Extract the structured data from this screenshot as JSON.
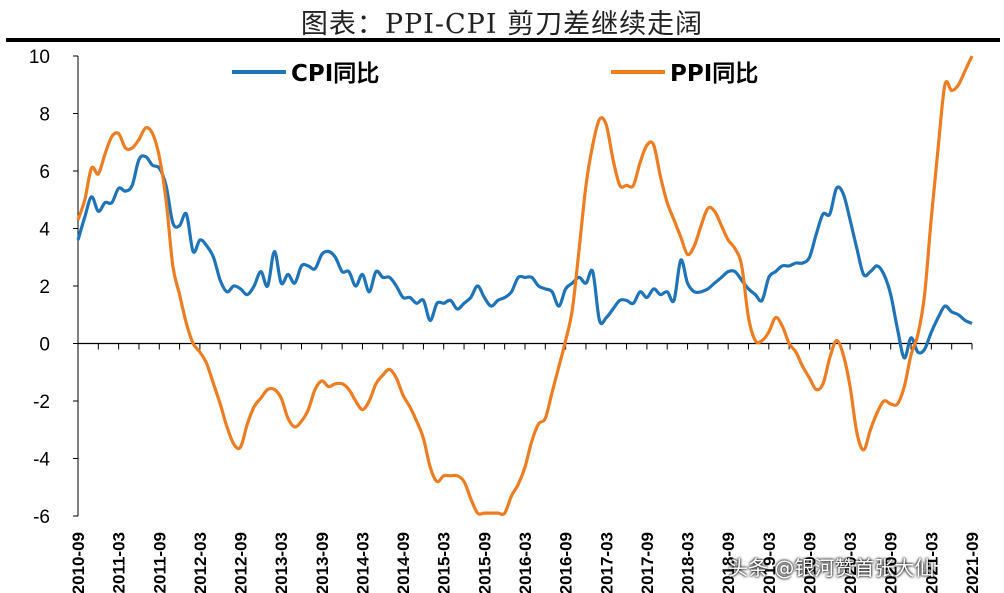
{
  "title": "图表：PPI-CPI 剪刀差继续走阔",
  "watermark": "头条 @银河赞首张大仙",
  "chart_data": {
    "type": "line",
    "title": "图表：PPI-CPI 剪刀差继续走阔",
    "xlabel": "",
    "ylabel": "",
    "ylim": [
      -6,
      10
    ],
    "yticks": [
      -6,
      -4,
      -2,
      0,
      2,
      4,
      6,
      8,
      10
    ],
    "x_tick_labels": [
      "2010-09",
      "2011-03",
      "2011-09",
      "2012-03",
      "2012-09",
      "2013-03",
      "2013-09",
      "2014-03",
      "2014-09",
      "2015-03",
      "2015-09",
      "2016-03",
      "2016-09",
      "2017-03",
      "2017-09",
      "2018-03",
      "2018-09",
      "2019-03",
      "2019-09",
      "2020-03",
      "2020-09",
      "2021-03",
      "2021-09"
    ],
    "legend_position": "top",
    "series": [
      {
        "name": "CPI同比",
        "color": "#1f73b7",
        "x": [
          "2010-09",
          "2010-10",
          "2010-11",
          "2010-12",
          "2011-01",
          "2011-02",
          "2011-03",
          "2011-04",
          "2011-05",
          "2011-06",
          "2011-07",
          "2011-08",
          "2011-09",
          "2011-10",
          "2011-11",
          "2011-12",
          "2012-01",
          "2012-02",
          "2012-03",
          "2012-04",
          "2012-05",
          "2012-06",
          "2012-07",
          "2012-08",
          "2012-09",
          "2012-10",
          "2012-11",
          "2012-12",
          "2013-01",
          "2013-02",
          "2013-03",
          "2013-04",
          "2013-05",
          "2013-06",
          "2013-07",
          "2013-08",
          "2013-09",
          "2013-10",
          "2013-11",
          "2013-12",
          "2014-01",
          "2014-02",
          "2014-03",
          "2014-04",
          "2014-05",
          "2014-06",
          "2014-07",
          "2014-08",
          "2014-09",
          "2014-10",
          "2014-11",
          "2014-12",
          "2015-01",
          "2015-02",
          "2015-03",
          "2015-04",
          "2015-05",
          "2015-06",
          "2015-07",
          "2015-08",
          "2015-09",
          "2015-10",
          "2015-11",
          "2015-12",
          "2016-01",
          "2016-02",
          "2016-03",
          "2016-04",
          "2016-05",
          "2016-06",
          "2016-07",
          "2016-08",
          "2016-09",
          "2016-10",
          "2016-11",
          "2016-12",
          "2017-01",
          "2017-02",
          "2017-03",
          "2017-04",
          "2017-05",
          "2017-06",
          "2017-07",
          "2017-08",
          "2017-09",
          "2017-10",
          "2017-11",
          "2017-12",
          "2018-01",
          "2018-02",
          "2018-03",
          "2018-04",
          "2018-05",
          "2018-06",
          "2018-07",
          "2018-08",
          "2018-09",
          "2018-10",
          "2018-11",
          "2018-12",
          "2019-01",
          "2019-02",
          "2019-03",
          "2019-04",
          "2019-05",
          "2019-06",
          "2019-07",
          "2019-08",
          "2019-09",
          "2019-10",
          "2019-11",
          "2019-12",
          "2020-01",
          "2020-02",
          "2020-03",
          "2020-04",
          "2020-05",
          "2020-06",
          "2020-07",
          "2020-08",
          "2020-09",
          "2020-10",
          "2020-11",
          "2020-12",
          "2021-01",
          "2021-02",
          "2021-03",
          "2021-04",
          "2021-05",
          "2021-06",
          "2021-07",
          "2021-08",
          "2021-09"
        ],
        "values": [
          3.6,
          4.4,
          5.1,
          4.6,
          4.9,
          4.9,
          5.4,
          5.3,
          5.5,
          6.4,
          6.5,
          6.2,
          6.1,
          5.5,
          4.2,
          4.1,
          4.5,
          3.2,
          3.6,
          3.4,
          3.0,
          2.2,
          1.8,
          2.0,
          1.9,
          1.7,
          2.0,
          2.5,
          2.0,
          3.2,
          2.1,
          2.4,
          2.1,
          2.7,
          2.7,
          2.6,
          3.1,
          3.2,
          3.0,
          2.5,
          2.5,
          2.0,
          2.4,
          1.8,
          2.5,
          2.3,
          2.3,
          2.0,
          1.6,
          1.6,
          1.4,
          1.5,
          0.8,
          1.4,
          1.4,
          1.5,
          1.2,
          1.4,
          1.6,
          2.0,
          1.6,
          1.3,
          1.5,
          1.6,
          1.8,
          2.3,
          2.3,
          2.3,
          2.0,
          1.9,
          1.8,
          1.3,
          1.9,
          2.1,
          2.3,
          2.1,
          2.5,
          0.8,
          0.9,
          1.2,
          1.5,
          1.5,
          1.4,
          1.8,
          1.6,
          1.9,
          1.7,
          1.8,
          1.5,
          2.9,
          2.1,
          1.8,
          1.8,
          1.9,
          2.1,
          2.3,
          2.5,
          2.5,
          2.2,
          1.9,
          1.7,
          1.5,
          2.3,
          2.5,
          2.7,
          2.7,
          2.8,
          2.8,
          3.0,
          3.8,
          4.5,
          4.5,
          5.4,
          5.2,
          4.3,
          3.3,
          2.4,
          2.5,
          2.7,
          2.4,
          1.7,
          0.5,
          -0.5,
          0.2,
          -0.3,
          -0.2,
          0.4,
          0.9,
          1.3,
          1.1,
          1.0,
          0.8,
          0.7
        ]
      },
      {
        "name": "PPI同比",
        "color": "#ed7d22",
        "x": [
          "2010-09",
          "2010-10",
          "2010-11",
          "2010-12",
          "2011-01",
          "2011-02",
          "2011-03",
          "2011-04",
          "2011-05",
          "2011-06",
          "2011-07",
          "2011-08",
          "2011-09",
          "2011-10",
          "2011-11",
          "2011-12",
          "2012-01",
          "2012-02",
          "2012-03",
          "2012-04",
          "2012-05",
          "2012-06",
          "2012-07",
          "2012-08",
          "2012-09",
          "2012-10",
          "2012-11",
          "2012-12",
          "2013-01",
          "2013-02",
          "2013-03",
          "2013-04",
          "2013-05",
          "2013-06",
          "2013-07",
          "2013-08",
          "2013-09",
          "2013-10",
          "2013-11",
          "2013-12",
          "2014-01",
          "2014-02",
          "2014-03",
          "2014-04",
          "2014-05",
          "2014-06",
          "2014-07",
          "2014-08",
          "2014-09",
          "2014-10",
          "2014-11",
          "2014-12",
          "2015-01",
          "2015-02",
          "2015-03",
          "2015-04",
          "2015-05",
          "2015-06",
          "2015-07",
          "2015-08",
          "2015-09",
          "2015-10",
          "2015-11",
          "2015-12",
          "2016-01",
          "2016-02",
          "2016-03",
          "2016-04",
          "2016-05",
          "2016-06",
          "2016-07",
          "2016-08",
          "2016-09",
          "2016-10",
          "2016-11",
          "2016-12",
          "2017-01",
          "2017-02",
          "2017-03",
          "2017-04",
          "2017-05",
          "2017-06",
          "2017-07",
          "2017-08",
          "2017-09",
          "2017-10",
          "2017-11",
          "2017-12",
          "2018-01",
          "2018-02",
          "2018-03",
          "2018-04",
          "2018-05",
          "2018-06",
          "2018-07",
          "2018-08",
          "2018-09",
          "2018-10",
          "2018-11",
          "2018-12",
          "2019-01",
          "2019-02",
          "2019-03",
          "2019-04",
          "2019-05",
          "2019-06",
          "2019-07",
          "2019-08",
          "2019-09",
          "2019-10",
          "2019-11",
          "2019-12",
          "2020-01",
          "2020-02",
          "2020-03",
          "2020-04",
          "2020-05",
          "2020-06",
          "2020-07",
          "2020-08",
          "2020-09",
          "2020-10",
          "2020-11",
          "2020-12",
          "2021-01",
          "2021-02",
          "2021-03",
          "2021-04",
          "2021-05",
          "2021-06",
          "2021-07",
          "2021-08",
          "2021-09"
        ],
        "values": [
          4.3,
          5.0,
          6.1,
          5.9,
          6.6,
          7.2,
          7.3,
          6.8,
          6.8,
          7.1,
          7.5,
          7.3,
          6.5,
          5.0,
          2.7,
          1.7,
          0.7,
          0.0,
          -0.3,
          -0.7,
          -1.4,
          -2.1,
          -2.9,
          -3.5,
          -3.6,
          -2.8,
          -2.2,
          -1.9,
          -1.6,
          -1.6,
          -1.9,
          -2.6,
          -2.9,
          -2.7,
          -2.3,
          -1.6,
          -1.3,
          -1.5,
          -1.4,
          -1.4,
          -1.6,
          -2.0,
          -2.3,
          -2.0,
          -1.4,
          -1.1,
          -0.9,
          -1.2,
          -1.8,
          -2.2,
          -2.7,
          -3.3,
          -4.3,
          -4.8,
          -4.6,
          -4.6,
          -4.6,
          -4.8,
          -5.4,
          -5.9,
          -5.9,
          -5.9,
          -5.9,
          -5.9,
          -5.3,
          -4.9,
          -4.3,
          -3.4,
          -2.8,
          -2.6,
          -1.7,
          -0.8,
          0.1,
          1.2,
          3.3,
          5.5,
          6.9,
          7.8,
          7.6,
          6.4,
          5.5,
          5.5,
          5.5,
          6.3,
          6.9,
          6.9,
          5.8,
          4.9,
          4.3,
          3.7,
          3.1,
          3.4,
          4.1,
          4.7,
          4.6,
          4.1,
          3.6,
          3.3,
          2.7,
          0.9,
          0.1,
          0.1,
          0.4,
          0.9,
          0.6,
          0.0,
          -0.3,
          -0.8,
          -1.2,
          -1.6,
          -1.4,
          -0.5,
          0.1,
          -0.4,
          -1.5,
          -3.1,
          -3.7,
          -3.0,
          -2.4,
          -2.0,
          -2.1,
          -2.1,
          -1.5,
          -0.4,
          0.3,
          1.7,
          4.4,
          6.8,
          9.0,
          8.8,
          9.0,
          9.5,
          10.0
        ]
      }
    ]
  }
}
